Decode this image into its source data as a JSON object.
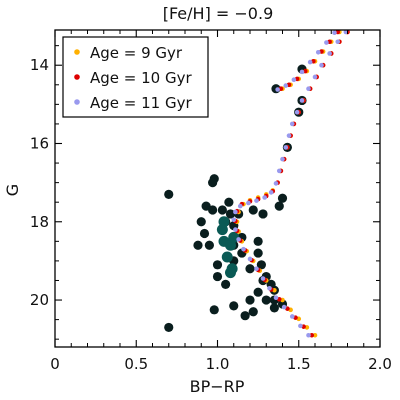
{
  "chart_data": {
    "type": "scatter",
    "title": "[Fe/H] = −0.9",
    "xlabel": "BP−RP",
    "ylabel": "G",
    "xlim": [
      0,
      2.0
    ],
    "ylim": [
      21.2,
      13.1
    ],
    "y_inverted": true,
    "x_ticks": [
      0,
      0.5,
      1.0,
      1.5,
      2.0
    ],
    "x_tick_labels": [
      "0",
      "0.5",
      "1.0",
      "1.5",
      "2.0"
    ],
    "y_ticks": [
      14,
      16,
      18,
      20
    ],
    "y_tick_labels": [
      "14",
      "16",
      "18",
      "20"
    ],
    "legend_position": "top-left",
    "grid": false,
    "series": [
      {
        "name": "Age = 9 Gyr",
        "color": "#ffb000",
        "kind": "isochrone",
        "points": [
          [
            1.6,
            20.9
          ],
          [
            1.55,
            20.7
          ],
          [
            1.5,
            20.48
          ],
          [
            1.45,
            20.25
          ],
          [
            1.4,
            20.0
          ],
          [
            1.35,
            19.75
          ],
          [
            1.3,
            19.5
          ],
          [
            1.26,
            19.25
          ],
          [
            1.22,
            19.0
          ],
          [
            1.18,
            18.75
          ],
          [
            1.15,
            18.5
          ],
          [
            1.13,
            18.25
          ],
          [
            1.12,
            18.0
          ],
          [
            1.13,
            17.75
          ],
          [
            1.16,
            17.55
          ],
          [
            1.2,
            17.45
          ],
          [
            1.25,
            17.38
          ],
          [
            1.3,
            17.3
          ],
          [
            1.34,
            17.2
          ],
          [
            1.37,
            17.0
          ],
          [
            1.39,
            16.7
          ],
          [
            1.41,
            16.4
          ],
          [
            1.43,
            16.1
          ],
          [
            1.45,
            15.8
          ],
          [
            1.47,
            15.5
          ],
          [
            1.5,
            15.2
          ],
          [
            1.53,
            14.9
          ],
          [
            1.57,
            14.6
          ],
          [
            1.61,
            14.3
          ],
          [
            1.65,
            14.0
          ],
          [
            1.7,
            13.7
          ],
          [
            1.75,
            13.4
          ],
          [
            1.8,
            13.15
          ],
          [
            1.4,
            14.6
          ],
          [
            1.45,
            14.5
          ],
          [
            1.5,
            14.35
          ],
          [
            1.55,
            14.15
          ],
          [
            1.6,
            13.9
          ],
          [
            1.65,
            13.65
          ],
          [
            1.7,
            13.4
          ],
          [
            1.75,
            13.15
          ]
        ]
      },
      {
        "name": "Age = 10 Gyr",
        "color": "#dd0000",
        "kind": "isochrone",
        "points": [
          [
            1.58,
            20.9
          ],
          [
            1.53,
            20.68
          ],
          [
            1.48,
            20.45
          ],
          [
            1.43,
            20.22
          ],
          [
            1.38,
            19.98
          ],
          [
            1.33,
            19.73
          ],
          [
            1.29,
            19.48
          ],
          [
            1.25,
            19.23
          ],
          [
            1.21,
            18.98
          ],
          [
            1.17,
            18.73
          ],
          [
            1.14,
            18.48
          ],
          [
            1.12,
            18.23
          ],
          [
            1.11,
            17.98
          ],
          [
            1.12,
            17.73
          ],
          [
            1.15,
            17.55
          ],
          [
            1.2,
            17.48
          ],
          [
            1.25,
            17.42
          ],
          [
            1.3,
            17.34
          ],
          [
            1.34,
            17.22
          ],
          [
            1.37,
            17.0
          ],
          [
            1.39,
            16.7
          ],
          [
            1.41,
            16.4
          ],
          [
            1.43,
            16.1
          ],
          [
            1.45,
            15.8
          ],
          [
            1.47,
            15.5
          ],
          [
            1.5,
            15.2
          ],
          [
            1.53,
            14.9
          ],
          [
            1.57,
            14.6
          ],
          [
            1.61,
            14.3
          ],
          [
            1.65,
            14.0
          ],
          [
            1.7,
            13.7
          ],
          [
            1.75,
            13.4
          ],
          [
            1.8,
            13.15
          ],
          [
            1.39,
            14.6
          ],
          [
            1.44,
            14.5
          ],
          [
            1.49,
            14.35
          ],
          [
            1.54,
            14.15
          ],
          [
            1.59,
            13.9
          ],
          [
            1.64,
            13.65
          ],
          [
            1.69,
            13.4
          ],
          [
            1.74,
            13.15
          ]
        ]
      },
      {
        "name": "Age = 11 Gyr",
        "color": "#9999ee",
        "kind": "isochrone",
        "points": [
          [
            1.56,
            20.9
          ],
          [
            1.51,
            20.66
          ],
          [
            1.46,
            20.42
          ],
          [
            1.41,
            20.18
          ],
          [
            1.36,
            19.94
          ],
          [
            1.32,
            19.7
          ],
          [
            1.28,
            19.45
          ],
          [
            1.24,
            19.2
          ],
          [
            1.2,
            18.95
          ],
          [
            1.16,
            18.7
          ],
          [
            1.13,
            18.45
          ],
          [
            1.11,
            18.2
          ],
          [
            1.1,
            17.95
          ],
          [
            1.11,
            17.75
          ],
          [
            1.14,
            17.6
          ],
          [
            1.19,
            17.52
          ],
          [
            1.24,
            17.46
          ],
          [
            1.29,
            17.38
          ],
          [
            1.33,
            17.25
          ],
          [
            1.36,
            17.02
          ],
          [
            1.38,
            16.7
          ],
          [
            1.4,
            16.4
          ],
          [
            1.42,
            16.1
          ],
          [
            1.44,
            15.8
          ],
          [
            1.46,
            15.5
          ],
          [
            1.49,
            15.2
          ],
          [
            1.52,
            14.9
          ],
          [
            1.56,
            14.6
          ],
          [
            1.6,
            14.3
          ],
          [
            1.64,
            14.0
          ],
          [
            1.69,
            13.7
          ],
          [
            1.74,
            13.4
          ],
          [
            1.79,
            13.15
          ],
          [
            1.37,
            14.62
          ],
          [
            1.42,
            14.52
          ],
          [
            1.47,
            14.37
          ],
          [
            1.52,
            14.17
          ],
          [
            1.57,
            13.92
          ],
          [
            1.62,
            13.67
          ],
          [
            1.67,
            13.42
          ],
          [
            1.72,
            13.17
          ]
        ]
      },
      {
        "name": "",
        "color": "#0a1e1e",
        "kind": "observed",
        "points": [
          [
            1.36,
            14.6
          ],
          [
            1.52,
            14.9
          ],
          [
            1.5,
            15.2
          ],
          [
            1.52,
            14.1
          ],
          [
            1.43,
            16.1
          ],
          [
            0.7,
            17.3
          ],
          [
            0.98,
            16.9
          ],
          [
            0.97,
            17.0
          ],
          [
            0.93,
            17.6
          ],
          [
            0.97,
            17.7
          ],
          [
            1.03,
            17.7
          ],
          [
            1.07,
            17.5
          ],
          [
            1.08,
            17.8
          ],
          [
            1.13,
            17.8
          ],
          [
            1.22,
            17.7
          ],
          [
            1.4,
            17.4
          ],
          [
            1.38,
            17.6
          ],
          [
            0.9,
            18.0
          ],
          [
            0.92,
            18.3
          ],
          [
            1.05,
            18.0
          ],
          [
            1.1,
            18.1
          ],
          [
            1.28,
            17.8
          ],
          [
            0.88,
            18.6
          ],
          [
            0.95,
            18.6
          ],
          [
            1.15,
            18.4
          ],
          [
            1.25,
            18.5
          ],
          [
            1.15,
            18.8
          ],
          [
            1.25,
            18.8
          ],
          [
            1.0,
            19.1
          ],
          [
            1.2,
            19.2
          ],
          [
            1.27,
            19.1
          ],
          [
            1.3,
            19.4
          ],
          [
            1.0,
            19.4
          ],
          [
            1.28,
            19.5
          ],
          [
            1.05,
            19.6
          ],
          [
            1.33,
            19.6
          ],
          [
            1.25,
            19.8
          ],
          [
            1.35,
            19.75
          ],
          [
            1.3,
            20.0
          ],
          [
            1.35,
            20.0
          ],
          [
            1.2,
            20.0
          ],
          [
            1.4,
            20.1
          ],
          [
            1.1,
            20.15
          ],
          [
            0.98,
            20.25
          ],
          [
            1.17,
            20.4
          ],
          [
            1.22,
            20.3
          ],
          [
            0.7,
            20.7
          ],
          [
            1.35,
            20.2
          ],
          [
            1.1,
            18.6
          ],
          [
            1.1,
            19.0
          ]
        ]
      },
      {
        "name": "",
        "color": "#0a5a55",
        "kind": "observed-highlight",
        "points": [
          [
            1.04,
            18.0
          ],
          [
            1.03,
            18.2
          ],
          [
            1.04,
            18.5
          ],
          [
            1.08,
            18.6
          ],
          [
            1.06,
            18.9
          ],
          [
            1.09,
            19.2
          ],
          [
            1.08,
            19.3
          ],
          [
            1.1,
            18.4
          ]
        ]
      }
    ]
  }
}
